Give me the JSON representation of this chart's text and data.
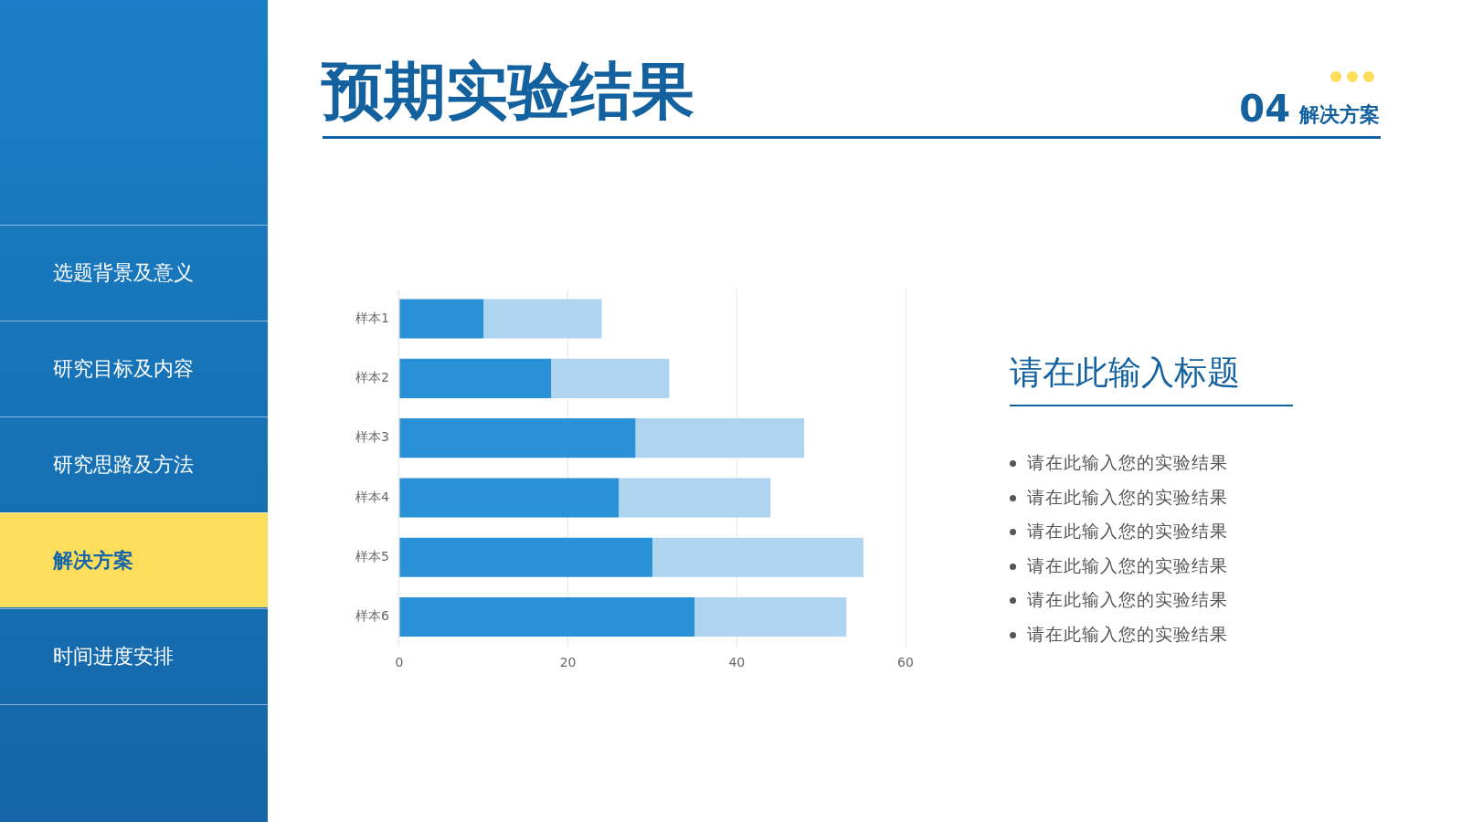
{
  "chart_data": {
    "type": "bar",
    "orientation": "horizontal",
    "stacked": true,
    "title": "预期实验结果",
    "categories": [
      "样本1",
      "样本2",
      "样本3",
      "样本4",
      "样本5",
      "样本6"
    ],
    "series": [
      {
        "color": "#2b91d6",
        "values": [
          10,
          18,
          28,
          26,
          30,
          35
        ]
      },
      {
        "color": "#aed4f0",
        "values": [
          14,
          14,
          20,
          18,
          25,
          18
        ]
      }
    ],
    "xlim": [
      0,
      60
    ],
    "xticks": [
      0,
      20,
      40,
      60
    ],
    "grid": "x",
    "legend": false,
    "annotations": [
      "选题背景及意义",
      "研究目标及内容",
      "研究思路及方法",
      "解决方案",
      "时间进度安排",
      "04",
      "解决方案",
      "请在此输入标题",
      "请在此输入您的实验结果",
      "请在此输入您的实验结果",
      "请在此输入您的实验结果",
      "请在此输入您的实验结果",
      "请在此输入您的实验结果",
      "请在此输入您的实验结果"
    ]
  }
}
